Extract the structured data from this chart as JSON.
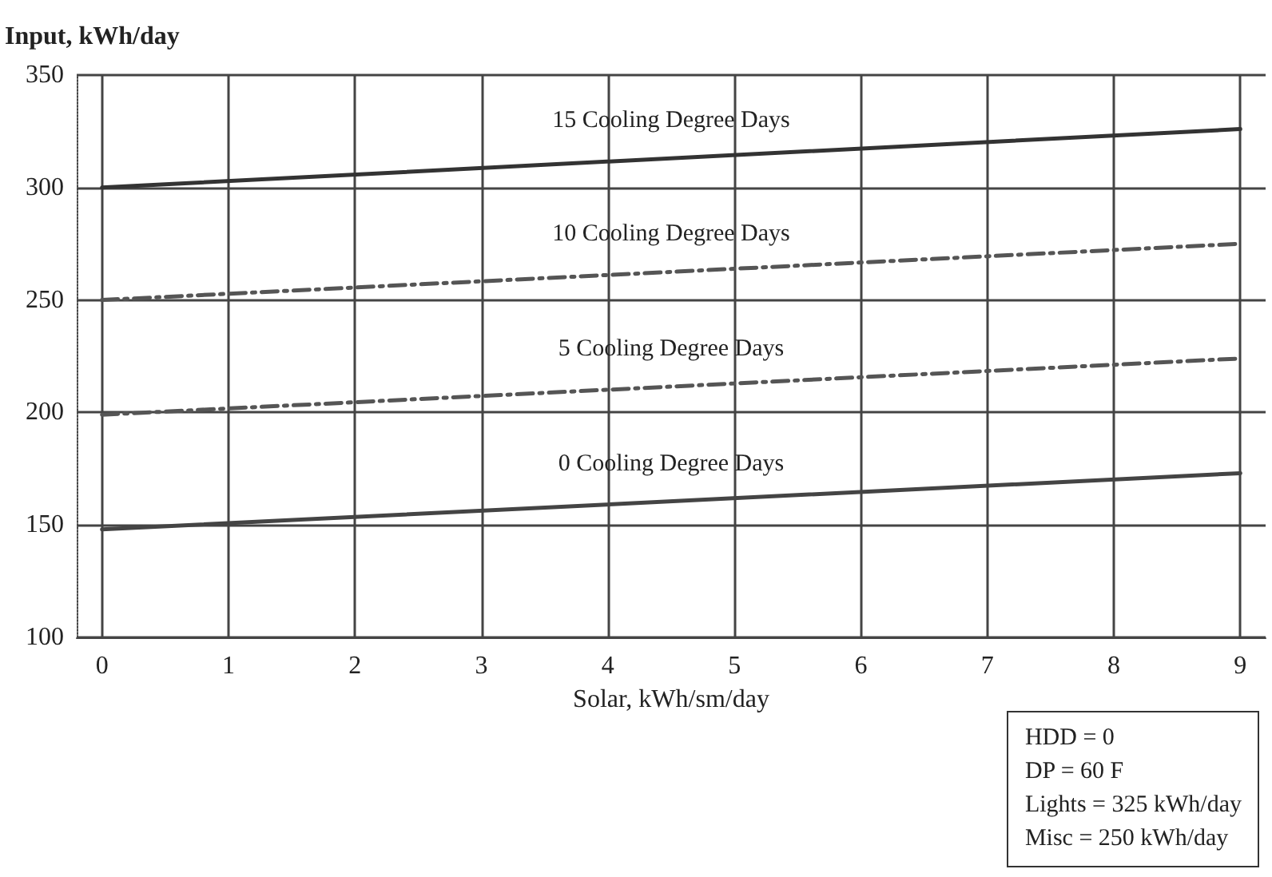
{
  "chart_data": {
    "type": "line",
    "ylabel": "Input, kWh/day",
    "xlabel": "Solar, kWh/sm/day",
    "x": [
      0,
      9
    ],
    "series": [
      {
        "name": "15 Cooling Degree Days",
        "color": "#333333",
        "values": [
          300,
          326
        ],
        "line_style": "solid"
      },
      {
        "name": "10 Cooling Degree Days",
        "color": "#555555",
        "values": [
          250,
          275
        ],
        "line_style": "dashed"
      },
      {
        "name": "5 Cooling Degree Days",
        "color": "#555555",
        "values": [
          199,
          224
        ],
        "line_style": "dashed"
      },
      {
        "name": "0 Cooling Degree Days",
        "color": "#444444",
        "values": [
          148,
          173
        ],
        "line_style": "solid"
      }
    ],
    "xlim": [
      -0.2,
      9.2
    ],
    "xticks": [
      0,
      1,
      2,
      3,
      4,
      5,
      6,
      7,
      8,
      9
    ],
    "ylim": [
      100,
      350
    ],
    "yticks": [
      100,
      150,
      200,
      250,
      300,
      350
    ],
    "grid": true,
    "legend": false,
    "marker": "none",
    "annotations": [
      "HDD = 0\nDP = 60 F\nLights = 325 kWh/day\nMisc = 250 kWh/day"
    ]
  }
}
